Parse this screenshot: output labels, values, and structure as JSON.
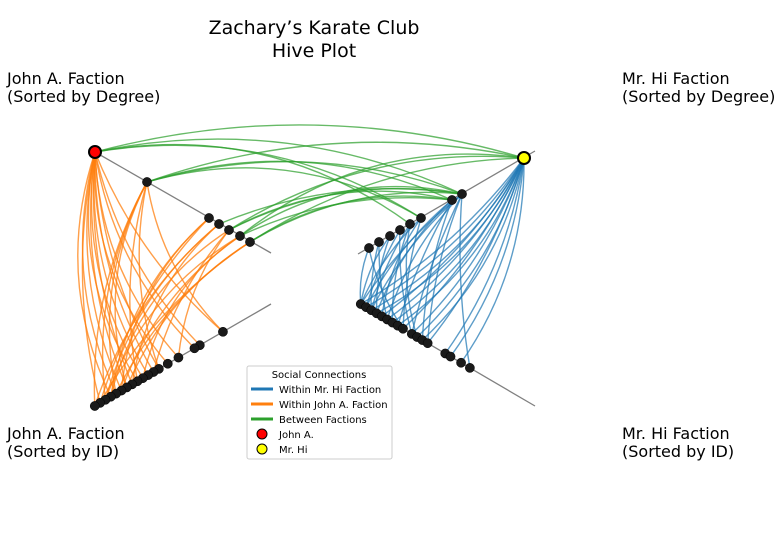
{
  "title_line1": "Zachary’s Karate Club",
  "title_line2": "Hive Plot",
  "axes": {
    "john_degree": {
      "line1": "John A. Faction",
      "line2": "(Sorted by Degree)"
    },
    "mrhi_degree": {
      "line1": "Mr. Hi Faction",
      "line2": "(Sorted by Degree)"
    },
    "john_id": {
      "line1": "John A. Faction",
      "line2": "(Sorted by ID)"
    },
    "mrhi_id": {
      "line1": "Mr. Hi Faction",
      "line2": "(Sorted by ID)"
    }
  },
  "legend": {
    "title": "Social Connections",
    "items": [
      {
        "label": "Within Mr. Hi Faction",
        "kind": "line",
        "color": "#1f77b4"
      },
      {
        "label": "Within John A. Faction",
        "kind": "line",
        "color": "#ff7f0e"
      },
      {
        "label": "Between Factions",
        "kind": "line",
        "color": "#2ca02c"
      },
      {
        "label": "John A.",
        "kind": "marker",
        "color": "#ff0000"
      },
      {
        "label": "Mr. Hi",
        "kind": "marker",
        "color": "#ffff00"
      }
    ]
  },
  "colors": {
    "within_mr_hi": "#1f77b4",
    "within_john": "#ff7f0e",
    "between": "#2ca02c",
    "node": "#1a1a1a",
    "axis_line": "#808080"
  },
  "nodes": {
    "john_degree": 8,
    "mrhi_degree": 8,
    "john_id": 17,
    "mrhi_id": 17
  }
}
